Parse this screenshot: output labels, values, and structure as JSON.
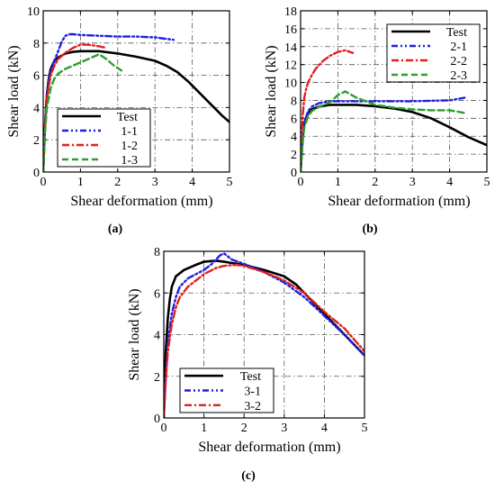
{
  "chart_data": [
    {
      "panel": "(a)",
      "type": "line",
      "xlabel": "Shear deformation (mm)",
      "ylabel": "Shear load (kN)",
      "xlim": [
        0,
        5
      ],
      "ylim": [
        0,
        10
      ],
      "xticks": [
        0,
        1,
        2,
        3,
        4,
        5
      ],
      "yticks": [
        0,
        2,
        4,
        6,
        8,
        10
      ],
      "grid": true,
      "legend": "bottom-left",
      "series": [
        {
          "name": "Test",
          "color": "#000000",
          "dash": "solid",
          "x": [
            0,
            0.05,
            0.1,
            0.15,
            0.2,
            0.3,
            0.4,
            0.6,
            0.8,
            1.0,
            1.5,
            2.0,
            2.5,
            3.0,
            3.3,
            3.6,
            3.9,
            4.2,
            4.5,
            4.8,
            5.0
          ],
          "y": [
            0,
            3.0,
            4.8,
            5.8,
            6.4,
            6.9,
            7.1,
            7.35,
            7.45,
            7.5,
            7.5,
            7.35,
            7.15,
            6.9,
            6.6,
            6.2,
            5.6,
            4.9,
            4.2,
            3.5,
            3.1
          ]
        },
        {
          "name": "1-1",
          "color": "#1f1fe0",
          "dash": "dashdotdot",
          "x": [
            0,
            0.05,
            0.1,
            0.2,
            0.3,
            0.4,
            0.5,
            0.6,
            0.7,
            0.8,
            1.0,
            1.5,
            2.0,
            2.5,
            3.0,
            3.5
          ],
          "y": [
            0,
            3.0,
            4.9,
            6.3,
            6.9,
            7.5,
            8.1,
            8.45,
            8.55,
            8.55,
            8.5,
            8.45,
            8.4,
            8.4,
            8.35,
            8.2
          ]
        },
        {
          "name": "1-2",
          "color": "#e01f1f",
          "dash": "dashdot",
          "x": [
            0,
            0.05,
            0.1,
            0.2,
            0.3,
            0.4,
            0.6,
            0.8,
            1.0,
            1.2,
            1.5,
            1.7
          ],
          "y": [
            0,
            2.8,
            4.6,
            6.0,
            6.6,
            7.0,
            7.4,
            7.7,
            7.9,
            7.9,
            7.8,
            7.7
          ]
        },
        {
          "name": "1-3",
          "color": "#2ca02c",
          "dash": "dashed",
          "x": [
            0,
            0.05,
            0.1,
            0.2,
            0.3,
            0.4,
            0.6,
            0.8,
            1.0,
            1.2,
            1.5,
            1.7,
            1.9,
            2.1
          ],
          "y": [
            0,
            2.5,
            4.0,
            5.2,
            5.8,
            6.1,
            6.4,
            6.6,
            6.8,
            7.0,
            7.3,
            7.0,
            6.6,
            6.3
          ]
        }
      ]
    },
    {
      "panel": "(b)",
      "type": "line",
      "xlabel": "Shear deformation (mm)",
      "ylabel": "Shear load (kN)",
      "xlim": [
        0,
        5
      ],
      "ylim": [
        0,
        18
      ],
      "xticks": [
        0,
        1,
        2,
        3,
        4,
        5
      ],
      "yticks": [
        0,
        2,
        4,
        6,
        8,
        10,
        12,
        14,
        16,
        18
      ],
      "grid": true,
      "legend": "top-right",
      "series": [
        {
          "name": "Test",
          "color": "#000000",
          "dash": "solid",
          "x": [
            0,
            0.05,
            0.1,
            0.2,
            0.3,
            0.5,
            0.8,
            1.0,
            1.5,
            2.0,
            2.5,
            3.0,
            3.5,
            4.0,
            4.5,
            5.0
          ],
          "y": [
            0,
            3.5,
            5.5,
            6.6,
            7.0,
            7.3,
            7.5,
            7.5,
            7.5,
            7.35,
            7.1,
            6.7,
            6.0,
            5.0,
            3.9,
            3.0
          ]
        },
        {
          "name": "2-1",
          "color": "#1f1fe0",
          "dash": "dashdotdot",
          "x": [
            0,
            0.05,
            0.1,
            0.2,
            0.3,
            0.5,
            0.8,
            1.0,
            1.5,
            2.0,
            3.0,
            4.0,
            4.4
          ],
          "y": [
            0,
            3.5,
            5.5,
            6.8,
            7.3,
            7.7,
            7.9,
            7.9,
            7.9,
            7.9,
            7.9,
            8.0,
            8.3
          ]
        },
        {
          "name": "2-2",
          "color": "#e01f1f",
          "dash": "dashdot",
          "x": [
            0,
            0.03,
            0.06,
            0.1,
            0.15,
            0.2,
            0.3,
            0.4,
            0.6,
            0.8,
            1.0,
            1.2,
            1.4
          ],
          "y": [
            0,
            4.0,
            6.5,
            8.3,
            9.3,
            10.0,
            10.8,
            11.5,
            12.4,
            13.0,
            13.4,
            13.6,
            13.3
          ]
        },
        {
          "name": "2-3",
          "color": "#2ca02c",
          "dash": "dashed",
          "x": [
            0,
            0.05,
            0.1,
            0.2,
            0.3,
            0.5,
            0.8,
            1.0,
            1.2,
            1.5,
            2.0,
            2.5,
            3.0,
            3.5,
            4.0,
            4.4
          ],
          "y": [
            0,
            3.0,
            5.0,
            6.2,
            6.8,
            7.3,
            7.8,
            8.6,
            9.0,
            8.3,
            7.5,
            7.2,
            7.0,
            6.9,
            6.9,
            6.6
          ]
        }
      ]
    },
    {
      "panel": "(c)",
      "type": "line",
      "xlabel": "Shear deformation (mm)",
      "ylabel": "Shear load (kN)",
      "xlim": [
        0,
        5
      ],
      "ylim": [
        0,
        8
      ],
      "xticks": [
        0,
        1,
        2,
        3,
        4,
        5
      ],
      "yticks": [
        0,
        2,
        4,
        6,
        8
      ],
      "grid": true,
      "legend": "bottom-left",
      "series": [
        {
          "name": "Test",
          "color": "#000000",
          "dash": "solid",
          "x": [
            0,
            0.05,
            0.1,
            0.15,
            0.2,
            0.3,
            0.5,
            0.8,
            1.0,
            1.3,
            1.5,
            2.0,
            2.5,
            3.0,
            3.3,
            3.6,
            4.0,
            4.5,
            5.0
          ],
          "y": [
            0,
            3.2,
            4.8,
            5.7,
            6.3,
            6.8,
            7.1,
            7.35,
            7.5,
            7.55,
            7.5,
            7.35,
            7.1,
            6.8,
            6.4,
            5.8,
            5.0,
            4.0,
            3.0
          ]
        },
        {
          "name": "3-1",
          "color": "#1f1fe0",
          "dash": "dashdotdot",
          "x": [
            0,
            0.05,
            0.1,
            0.2,
            0.3,
            0.4,
            0.6,
            0.8,
            1.0,
            1.2,
            1.4,
            1.5,
            1.7,
            2.0,
            2.5,
            3.0,
            3.5,
            4.0,
            4.5,
            5.0
          ],
          "y": [
            0,
            2.0,
            3.6,
            5.0,
            5.8,
            6.3,
            6.7,
            6.9,
            7.1,
            7.4,
            7.8,
            7.9,
            7.6,
            7.4,
            7.0,
            6.5,
            5.8,
            4.9,
            4.0,
            3.0
          ]
        },
        {
          "name": "3-2",
          "color": "#e01f1f",
          "dash": "dashdot",
          "x": [
            0,
            0.05,
            0.1,
            0.2,
            0.3,
            0.4,
            0.6,
            0.8,
            1.0,
            1.3,
            1.5,
            1.8,
            2.0,
            2.5,
            3.0,
            3.5,
            4.0,
            4.5,
            5.0
          ],
          "y": [
            0,
            1.8,
            3.2,
            4.5,
            5.3,
            5.8,
            6.3,
            6.6,
            6.9,
            7.2,
            7.3,
            7.35,
            7.3,
            7.0,
            6.6,
            6.0,
            5.1,
            4.3,
            3.2
          ]
        }
      ]
    }
  ]
}
